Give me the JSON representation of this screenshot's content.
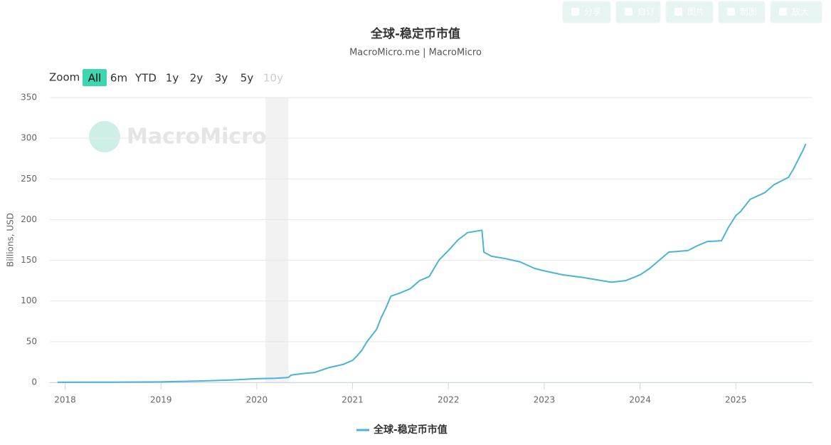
{
  "toolbar": [
    "分享",
    "自订",
    "图片",
    "制图",
    "放大"
  ],
  "zoom": {
    "label": "Zoom",
    "buttons": [
      "All",
      "6m",
      "YTD",
      "1y",
      "2y",
      "3y",
      "5y",
      "10y"
    ],
    "active": "All",
    "disabled": [
      "10y"
    ]
  },
  "watermark": "MacroMicro",
  "chart_data": {
    "type": "line",
    "title": "全球-稳定币市值",
    "subtitle": "MacroMicro.me | MacroMicro",
    "y_label": "Billions, USD",
    "x": [
      2017.92,
      2018.5,
      2019.0,
      2019.5,
      2019.75,
      2020.0,
      2020.2,
      2020.33,
      2020.36,
      2020.5,
      2020.6,
      2020.75,
      2020.9,
      2021.0,
      2021.05,
      2021.1,
      2021.15,
      2021.25,
      2021.3,
      2021.35,
      2021.4,
      2021.5,
      2021.6,
      2021.7,
      2021.8,
      2021.9,
      2022.0,
      2022.1,
      2022.2,
      2022.35,
      2022.37,
      2022.45,
      2022.6,
      2022.75,
      2022.9,
      2023.0,
      2023.2,
      2023.4,
      2023.6,
      2023.7,
      2023.85,
      2024.0,
      2024.1,
      2024.2,
      2024.3,
      2024.5,
      2024.6,
      2024.7,
      2024.85,
      2024.92,
      2025.0,
      2025.05,
      2025.15,
      2025.3,
      2025.4,
      2025.55,
      2025.6,
      2025.7,
      2025.73
    ],
    "series": [
      {
        "name": "全球-稳定币市值",
        "color": "#4ab3d6",
        "values": [
          0.1,
          0.3,
          0.5,
          2,
          3,
          4.5,
          5,
          6,
          9,
          11,
          12,
          18,
          22,
          27,
          33,
          40,
          50,
          65,
          80,
          92,
          106,
          110,
          115,
          125,
          130,
          150,
          162,
          175,
          184,
          187,
          160,
          155,
          152,
          148,
          140,
          137,
          132,
          129,
          125,
          123,
          125,
          132,
          140,
          150,
          160,
          162,
          168,
          173,
          174,
          190,
          205,
          210,
          225,
          233,
          243,
          252,
          262,
          285,
          293
        ]
      }
    ],
    "xlim": [
      2017.84,
      2025.8
    ],
    "xticks": [
      2018,
      2019,
      2020,
      2021,
      2022,
      2023,
      2024,
      2025
    ],
    "ylim": [
      0,
      350
    ],
    "yticks": [
      0,
      50,
      100,
      150,
      200,
      250,
      300,
      350
    ],
    "shaded_ranges": [
      [
        2020.09,
        2020.33
      ]
    ],
    "grid": true
  }
}
